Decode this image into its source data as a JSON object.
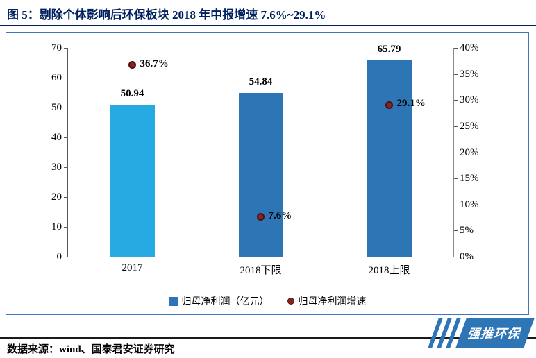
{
  "title": "图 5：剔除个体影响后环保板块 2018 年中报增速 7.6%~29.1%",
  "footer": {
    "source": "数据来源：wind、国泰君安证券研究"
  },
  "logo": {
    "text": "强推环保"
  },
  "colors": {
    "title": "#002060",
    "frame": "#4472C4",
    "bar_2017": "#27AAE1",
    "bar_default": "#2E75B6",
    "dot": "#8B2222",
    "dot_border": "#4d0f0f"
  },
  "chart_data": {
    "type": "bar",
    "categories": [
      "2017",
      "2018下限",
      "2018上限"
    ],
    "series": [
      {
        "name": "归母净利润（亿元）",
        "type": "bar",
        "axis": "left",
        "values": [
          50.94,
          54.84,
          65.79
        ],
        "colors": [
          "#27AAE1",
          "#2E75B6",
          "#2E75B6"
        ]
      },
      {
        "name": "归母净利润增速",
        "type": "scatter",
        "axis": "right",
        "values": [
          36.7,
          7.6,
          29.1
        ],
        "labels": [
          "36.7%",
          "7.6%",
          "29.1%"
        ]
      }
    ],
    "left_axis": {
      "min": 0,
      "max": 70,
      "step": 10
    },
    "right_axis": {
      "min": 0,
      "max": 40,
      "step": 5,
      "suffix": "%"
    },
    "grid": false,
    "legend_position": "bottom"
  }
}
